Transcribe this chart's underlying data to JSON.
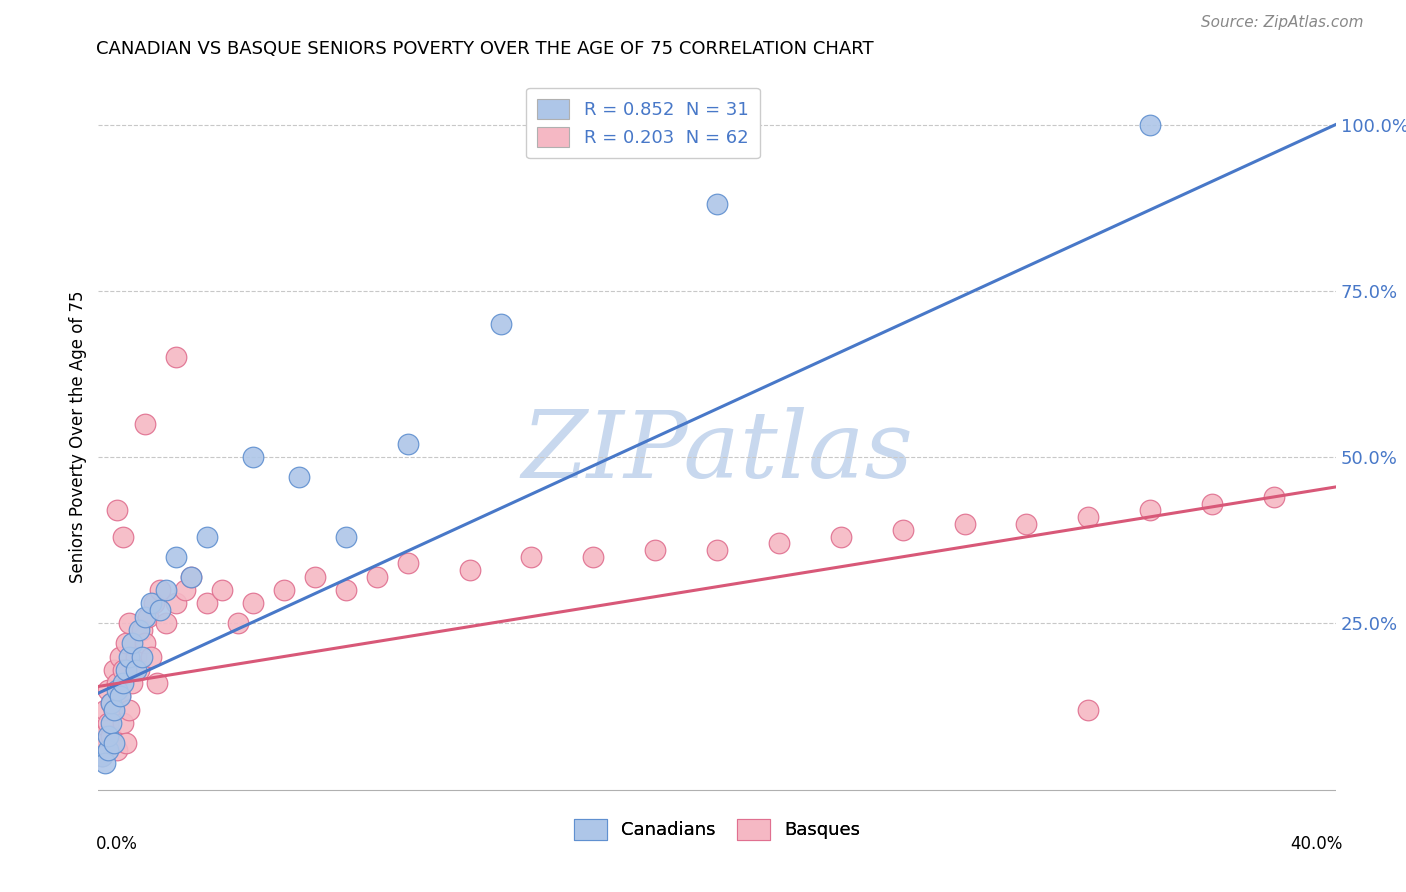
{
  "title": "CANADIAN VS BASQUE SENIORS POVERTY OVER THE AGE OF 75 CORRELATION CHART",
  "source": "Source: ZipAtlas.com",
  "ylabel": "Seniors Poverty Over the Age of 75",
  "legend_blue_text": "R = 0.852  N = 31",
  "legend_pink_text": "R = 0.203  N = 62",
  "legend_label_canadians": "Canadians",
  "legend_label_basques": "Basques",
  "blue_fill": "#aec6e8",
  "pink_fill": "#f5b8c4",
  "blue_edge": "#6090d0",
  "pink_edge": "#e07090",
  "blue_line": "#4878c8",
  "pink_line": "#d85878",
  "watermark_color": "#c8d8ee",
  "y_tick_values": [
    0.0,
    0.25,
    0.5,
    0.75,
    1.0
  ],
  "y_tick_labels": [
    "",
    "25.0%",
    "50.0%",
    "75.0%",
    "100.0%"
  ],
  "xlim": [
    0.0,
    0.4
  ],
  "ylim": [
    -0.02,
    1.08
  ],
  "canadians_x": [
    0.001,
    0.002,
    0.003,
    0.003,
    0.004,
    0.004,
    0.005,
    0.005,
    0.006,
    0.007,
    0.008,
    0.009,
    0.01,
    0.011,
    0.012,
    0.013,
    0.014,
    0.015,
    0.017,
    0.02,
    0.022,
    0.025,
    0.03,
    0.035,
    0.05,
    0.065,
    0.08,
    0.1,
    0.13,
    0.2,
    0.34
  ],
  "canadians_y": [
    0.05,
    0.04,
    0.06,
    0.08,
    0.1,
    0.13,
    0.07,
    0.12,
    0.15,
    0.14,
    0.16,
    0.18,
    0.2,
    0.22,
    0.18,
    0.24,
    0.2,
    0.26,
    0.28,
    0.27,
    0.3,
    0.35,
    0.32,
    0.38,
    0.5,
    0.47,
    0.38,
    0.52,
    0.7,
    0.88,
    1.0
  ],
  "basques_x": [
    0.001,
    0.001,
    0.002,
    0.002,
    0.003,
    0.003,
    0.004,
    0.004,
    0.005,
    0.005,
    0.006,
    0.006,
    0.007,
    0.007,
    0.008,
    0.008,
    0.009,
    0.009,
    0.01,
    0.01,
    0.011,
    0.012,
    0.013,
    0.014,
    0.015,
    0.016,
    0.017,
    0.018,
    0.019,
    0.02,
    0.022,
    0.025,
    0.028,
    0.03,
    0.035,
    0.04,
    0.045,
    0.05,
    0.06,
    0.07,
    0.08,
    0.09,
    0.1,
    0.12,
    0.14,
    0.16,
    0.18,
    0.2,
    0.22,
    0.24,
    0.26,
    0.28,
    0.3,
    0.32,
    0.34,
    0.36,
    0.38,
    0.025,
    0.015,
    0.008,
    0.006,
    0.32
  ],
  "basques_y": [
    0.05,
    0.08,
    0.07,
    0.12,
    0.1,
    0.15,
    0.08,
    0.13,
    0.12,
    0.18,
    0.06,
    0.16,
    0.14,
    0.2,
    0.1,
    0.18,
    0.07,
    0.22,
    0.12,
    0.25,
    0.16,
    0.2,
    0.18,
    0.24,
    0.22,
    0.26,
    0.2,
    0.28,
    0.16,
    0.3,
    0.25,
    0.28,
    0.3,
    0.32,
    0.28,
    0.3,
    0.25,
    0.28,
    0.3,
    0.32,
    0.3,
    0.32,
    0.34,
    0.33,
    0.35,
    0.35,
    0.36,
    0.36,
    0.37,
    0.38,
    0.39,
    0.4,
    0.4,
    0.41,
    0.42,
    0.43,
    0.44,
    0.65,
    0.55,
    0.38,
    0.42,
    0.12
  ],
  "blue_line_x": [
    0.0,
    0.4
  ],
  "blue_line_y": [
    0.145,
    1.0
  ],
  "pink_line_x": [
    0.0,
    0.4
  ],
  "pink_line_y": [
    0.155,
    0.455
  ]
}
